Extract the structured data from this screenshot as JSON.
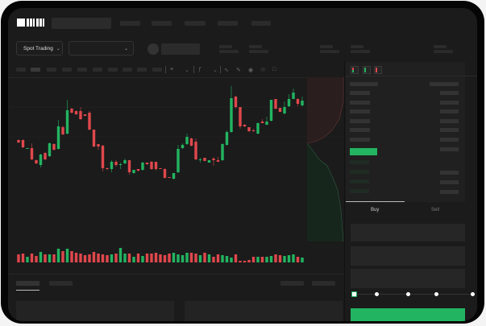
{
  "header": {
    "logo_text": "OKX",
    "nav_items": [
      "",
      "",
      "",
      "",
      ""
    ]
  },
  "toolbar": {
    "market_selector": "Spot Trading",
    "pair_selector": "",
    "dropdown_icon": "chevron-down-icon",
    "chart_tools": [
      "line-icon",
      "ruler-icon",
      "camera-icon",
      "settings-icon",
      "fullscreen-icon"
    ]
  },
  "orderbook": {
    "view_icons": [
      "orderbook-both-icon",
      "orderbook-bids-icon",
      "orderbook-asks-icon"
    ]
  },
  "trade_panel": {
    "tabs": [
      "Buy",
      "Sell"
    ],
    "active_tab": "Buy",
    "slider_percent": 0,
    "slider_stops": 5
  },
  "colors": {
    "up": "#23b461",
    "down": "#e0474c",
    "background": "#1b1b1b",
    "accent": "#23b461"
  },
  "chart_data": {
    "type": "candlestick",
    "fields": [
      "open",
      "close",
      "high",
      "low"
    ],
    "candles": [
      [
        58,
        55,
        59,
        54
      ],
      [
        58,
        49,
        59,
        48
      ],
      [
        47,
        48,
        48,
        47
      ],
      [
        48,
        34,
        54,
        33
      ],
      [
        33,
        29,
        34,
        28
      ],
      [
        27,
        40,
        41,
        24
      ],
      [
        42,
        34,
        43,
        33
      ],
      [
        38,
        54,
        55,
        37
      ],
      [
        53,
        46,
        54,
        45
      ],
      [
        47,
        75,
        83,
        46
      ],
      [
        74,
        65,
        76,
        64
      ],
      [
        66,
        95,
        108,
        65
      ],
      [
        97,
        92,
        98,
        91
      ],
      [
        94,
        90,
        95,
        89
      ],
      [
        94,
        84,
        99,
        83
      ],
      [
        90,
        88,
        90,
        88
      ],
      [
        92,
        71,
        94,
        70
      ],
      [
        71,
        50,
        71,
        49
      ],
      [
        53,
        50,
        53,
        46
      ],
      [
        51,
        23,
        52,
        19
      ],
      [
        23,
        22,
        24,
        21
      ],
      [
        22,
        31,
        33,
        18
      ],
      [
        31,
        27,
        33,
        25
      ],
      [
        27,
        28,
        30,
        22
      ],
      [
        29,
        33,
        35,
        28
      ],
      [
        33,
        18,
        33,
        15
      ],
      [
        17,
        21,
        21,
        16
      ],
      [
        22,
        20,
        22,
        19
      ],
      [
        21,
        30,
        31,
        20
      ],
      [
        30,
        28,
        30,
        27
      ],
      [
        31,
        22,
        32,
        21
      ],
      [
        31,
        22,
        31,
        20
      ],
      [
        23,
        22,
        23,
        22
      ],
      [
        22,
        11,
        23,
        10
      ],
      [
        12,
        11,
        12,
        11
      ],
      [
        10,
        17,
        17,
        9
      ],
      [
        18,
        47,
        52,
        17
      ],
      [
        48,
        52,
        54,
        47
      ],
      [
        53,
        62,
        66,
        52
      ],
      [
        60,
        51,
        61,
        50
      ],
      [
        56,
        34,
        60,
        33
      ],
      [
        33,
        34,
        36,
        30
      ],
      [
        36,
        32,
        36,
        32
      ],
      [
        30,
        33,
        33,
        30
      ],
      [
        35,
        33,
        37,
        26
      ],
      [
        33,
        31,
        37,
        31
      ],
      [
        33,
        53,
        54,
        32
      ],
      [
        52,
        68,
        70,
        51
      ],
      [
        68,
        110,
        125,
        67
      ],
      [
        112,
        99,
        113,
        97
      ],
      [
        99,
        75,
        99,
        72
      ],
      [
        77,
        75,
        78,
        74
      ],
      [
        74,
        69,
        74,
        68
      ],
      [
        70,
        69,
        72,
        68
      ],
      [
        66,
        79,
        80,
        65
      ],
      [
        81,
        79,
        84,
        79
      ],
      [
        77,
        81,
        87,
        77
      ],
      [
        82,
        108,
        108,
        81
      ],
      [
        109,
        97,
        109,
        96
      ],
      [
        98,
        93,
        98,
        93
      ],
      [
        91,
        99,
        106,
        90
      ],
      [
        100,
        109,
        115,
        99
      ],
      [
        109,
        117,
        122,
        109
      ],
      [
        109,
        103,
        110,
        100
      ],
      [
        101,
        107,
        112,
        100
      ]
    ],
    "volume": [
      10,
      11,
      7,
      11,
      8,
      13,
      10,
      10,
      10,
      17,
      14,
      17,
      14,
      12,
      11,
      9,
      10,
      13,
      11,
      10,
      9,
      10,
      11,
      18,
      11,
      11,
      7,
      11,
      8,
      11,
      11,
      12,
      10,
      9,
      11,
      12,
      10,
      9,
      12,
      12,
      11,
      9,
      12,
      10,
      7,
      10,
      9,
      8,
      6,
      10,
      2,
      2,
      3,
      7,
      7,
      7,
      7,
      8,
      10,
      9,
      8,
      9,
      10,
      7,
      6
    ],
    "grid": true
  }
}
